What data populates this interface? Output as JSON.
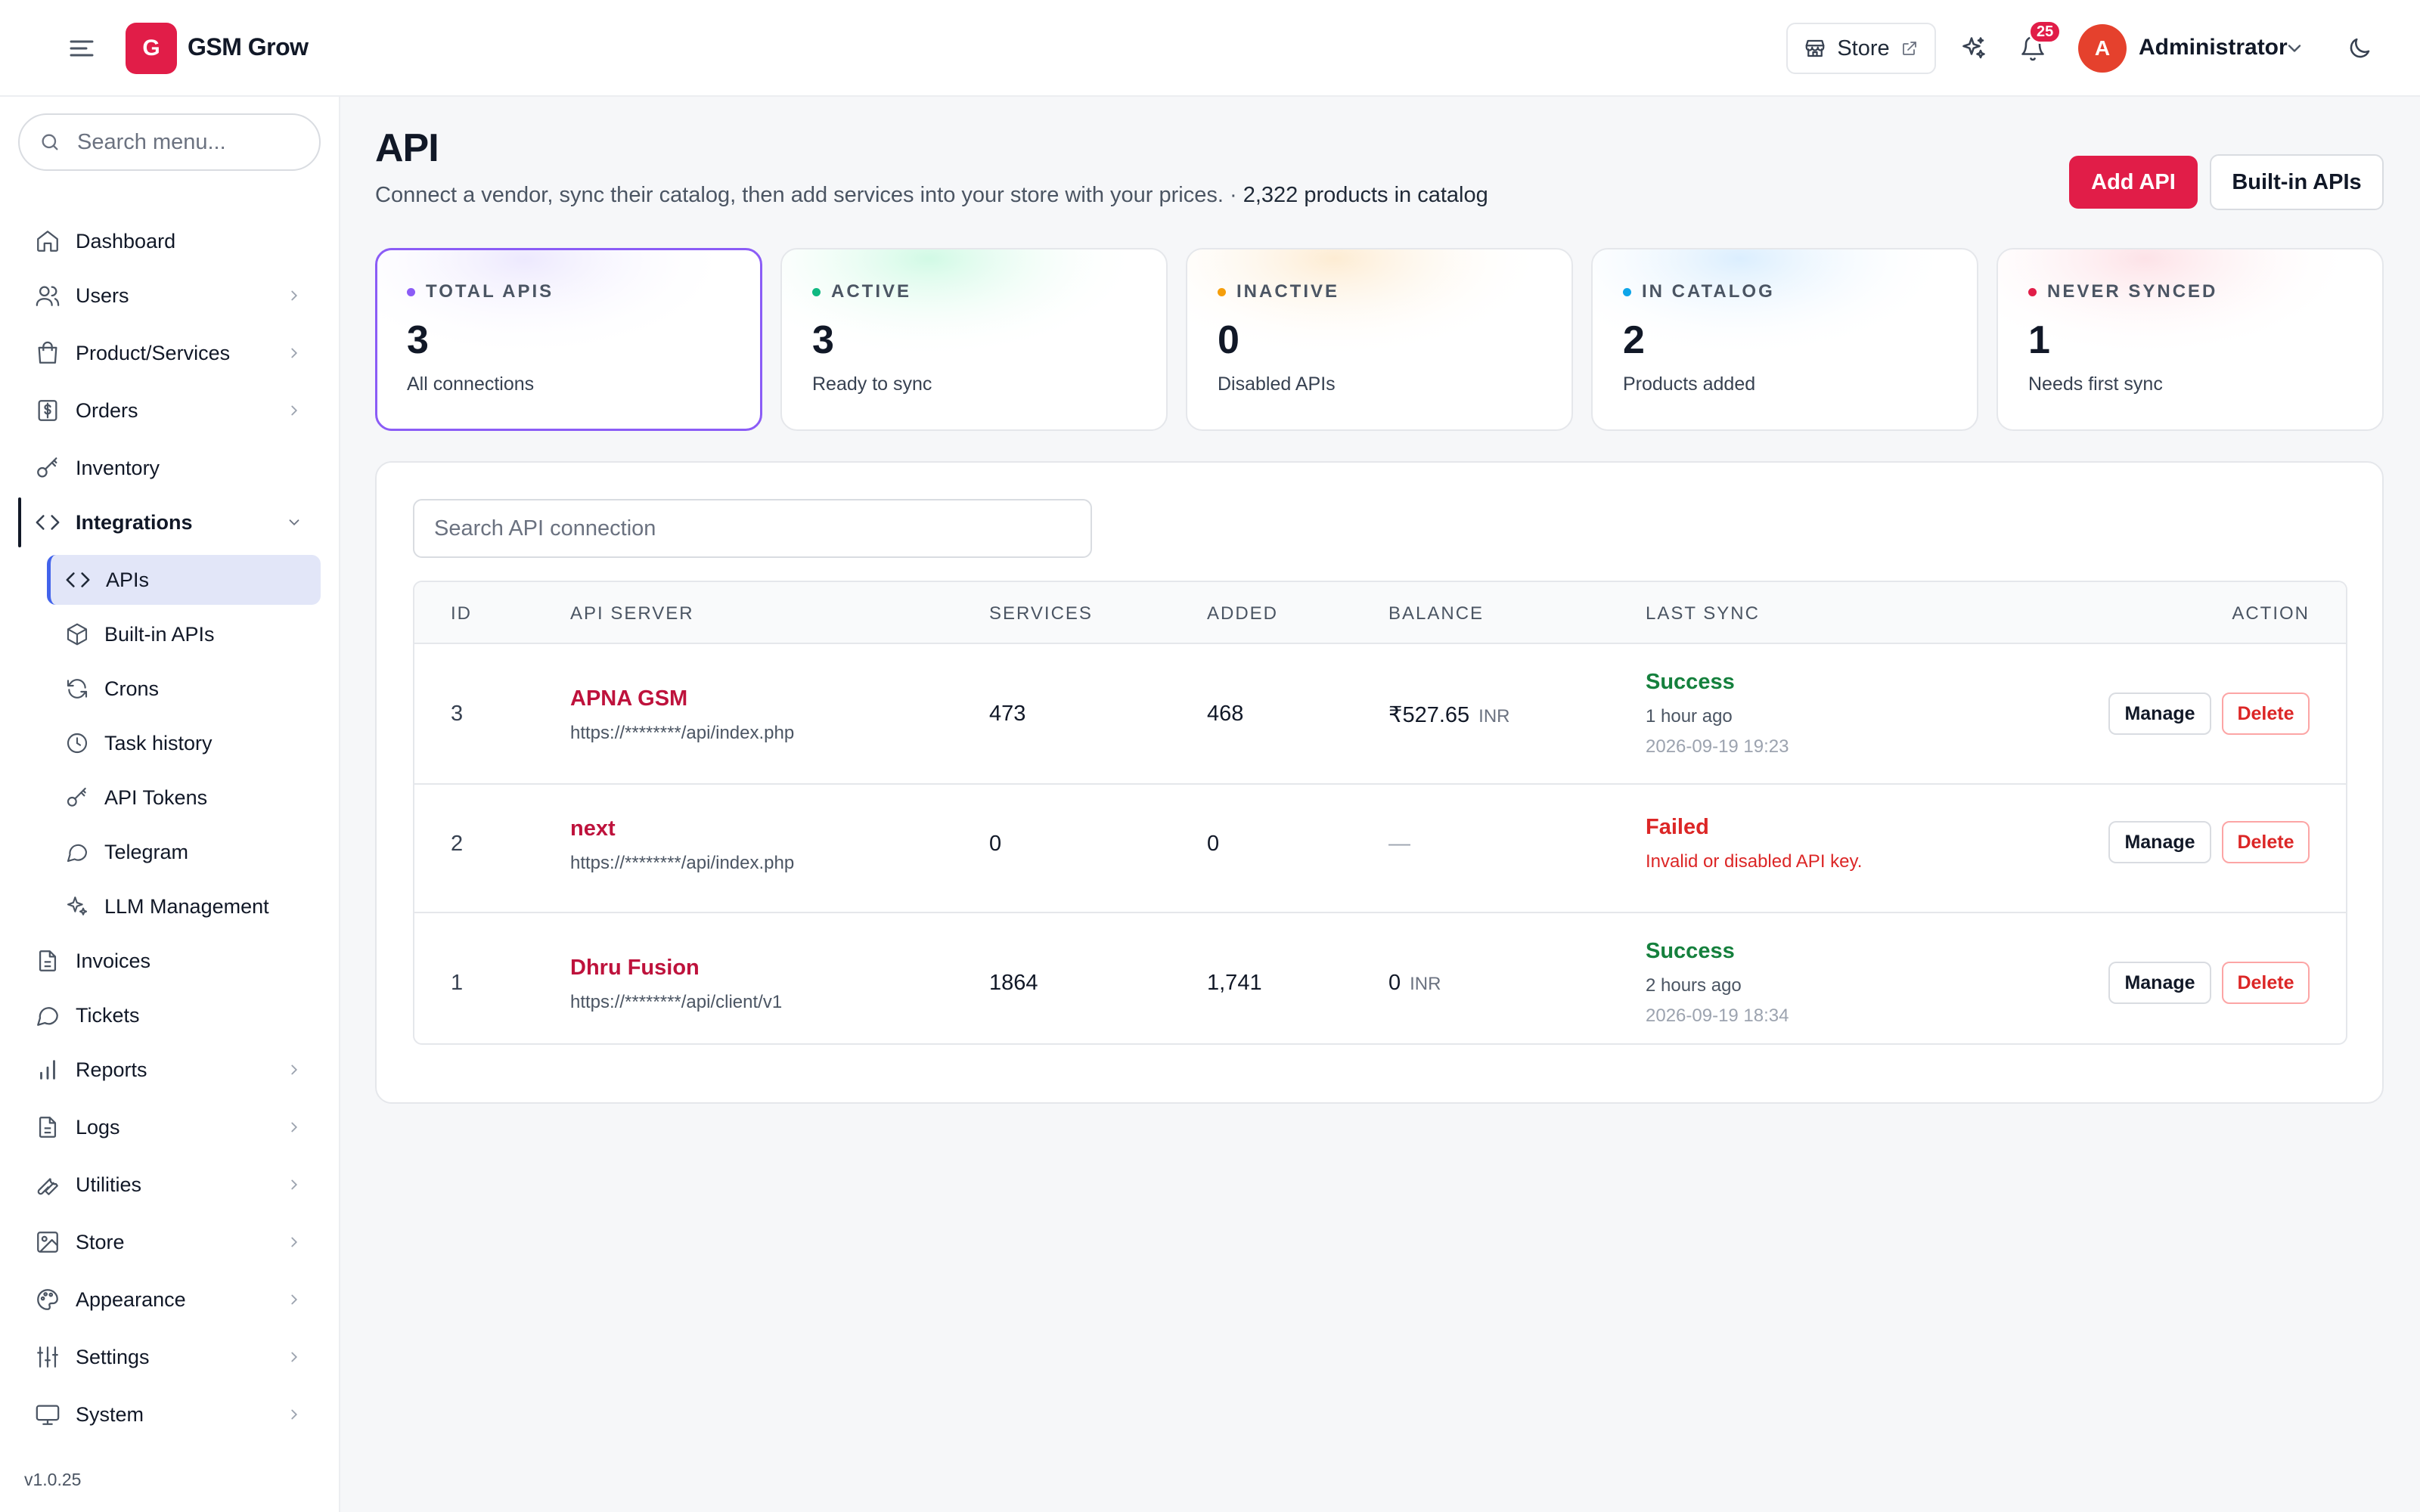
{
  "header": {
    "logo_letter": "G",
    "app_name": "GSM Grow",
    "store_label": "Store",
    "notification_count": "25",
    "user_initial": "A",
    "user_name": "Administrator",
    "accent_color": "#e11d48"
  },
  "sidebar": {
    "search_placeholder": "Search menu...",
    "items": [
      {
        "label": "Dashboard",
        "icon": "home-icon"
      },
      {
        "label": "Users",
        "icon": "users-icon"
      },
      {
        "label": "Product/Services",
        "icon": "shopping-bag-icon"
      },
      {
        "label": "Orders",
        "icon": "dollar-receipt-icon"
      },
      {
        "label": "Inventory",
        "icon": "key-icon"
      },
      {
        "label": "Integrations",
        "icon": "code-icon",
        "expanded": true
      },
      {
        "label": "Invoices",
        "icon": "file-text-icon"
      },
      {
        "label": "Tickets",
        "icon": "chat-bubble-icon"
      },
      {
        "label": "Reports",
        "icon": "bar-chart-icon"
      },
      {
        "label": "Logs",
        "icon": "file-text-icon"
      },
      {
        "label": "Utilities",
        "icon": "wrench-icon"
      },
      {
        "label": "Store",
        "icon": "image-icon"
      },
      {
        "label": "Appearance",
        "icon": "palette-icon"
      },
      {
        "label": "Settings",
        "icon": "sliders-icon"
      },
      {
        "label": "System",
        "icon": "monitor-icon"
      }
    ],
    "integrations_sub": [
      {
        "label": "APIs",
        "icon": "code-icon",
        "active": true
      },
      {
        "label": "Built-in APIs",
        "icon": "box-icon"
      },
      {
        "label": "Crons",
        "icon": "refresh-icon"
      },
      {
        "label": "Task history",
        "icon": "clock-icon"
      },
      {
        "label": "API Tokens",
        "icon": "key-icon"
      },
      {
        "label": "Telegram",
        "icon": "chat-bubble-icon"
      },
      {
        "label": "LLM Management",
        "icon": "sparkles-icon"
      }
    ],
    "version": "v1.0.25"
  },
  "page": {
    "title": "API",
    "subtitle": "Connect a vendor, sync their catalog, then add services into your store with your prices.",
    "subtitle_sep": " · ",
    "catalog_count": "2,322 products in catalog",
    "add_button": "Add API",
    "builtin_button": "Built-in APIs"
  },
  "stats": [
    {
      "label": "TOTAL APIS",
      "value": "3",
      "note": "All connections",
      "dot": "#8b5cf6"
    },
    {
      "label": "ACTIVE",
      "value": "3",
      "note": "Ready to sync",
      "dot": "#10b981"
    },
    {
      "label": "INACTIVE",
      "value": "0",
      "note": "Disabled APIs",
      "dot": "#f59e0b"
    },
    {
      "label": "IN CATALOG",
      "value": "2",
      "note": "Products added",
      "dot": "#0ea5e9"
    },
    {
      "label": "NEVER SYNCED",
      "value": "1",
      "note": "Needs first sync",
      "dot": "#e11d48"
    }
  ],
  "table": {
    "search_placeholder": "Search API connection",
    "columns": [
      "ID",
      "API SERVER",
      "SERVICES",
      "ADDED",
      "BALANCE",
      "LAST SYNC",
      "ACTION"
    ],
    "rows": [
      {
        "id": "3",
        "name": "APNA GSM",
        "url": "https://********/api/index.php",
        "services": "473",
        "added": "468",
        "balance": "₹527.65",
        "currency": "INR",
        "sync_status": "Success",
        "sync_ago": "1 hour ago",
        "sync_time": "2026-09-19 19:23"
      },
      {
        "id": "2",
        "name": "next",
        "url": "https://********/api/index.php",
        "services": "0",
        "added": "0",
        "balance": "—",
        "currency": "",
        "sync_status": "Failed",
        "sync_error": "Invalid or disabled API key."
      },
      {
        "id": "1",
        "name": "Dhru Fusion",
        "url": "https://********/api/client/v1",
        "services": "1864",
        "added": "1,741",
        "balance": "0",
        "currency": "INR",
        "sync_status": "Success",
        "sync_ago": "2 hours ago",
        "sync_time": "2026-09-19 18:34"
      }
    ],
    "manage_label": "Manage",
    "delete_label": "Delete"
  }
}
